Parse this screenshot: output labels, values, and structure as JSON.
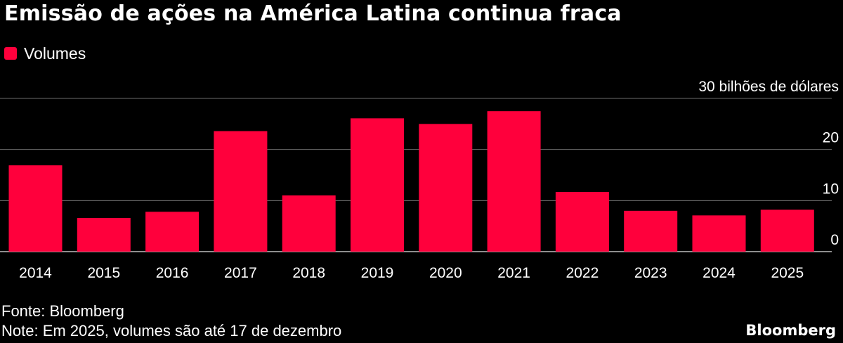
{
  "title": "Emissão de ações na América Latina continua fraca",
  "legend": {
    "label": "Volumes",
    "color": "#ff003c"
  },
  "footer": {
    "source": "Fonte: Bloomberg",
    "note": "Note: Em 2025, volumes são até 17 de dezembro",
    "brand": "Bloomberg"
  },
  "chart_data": {
    "type": "bar",
    "title": "Emissão de ações na América Latina continua fraca",
    "xlabel": "",
    "ylabel": "30 bilhões de dólares",
    "categories": [
      "2014",
      "2015",
      "2016",
      "2017",
      "2018",
      "2019",
      "2020",
      "2021",
      "2022",
      "2023",
      "2024",
      "2025"
    ],
    "series": [
      {
        "name": "Volumes",
        "values": [
          16.9,
          6.6,
          7.8,
          23.6,
          11.0,
          26.1,
          25.0,
          27.5,
          11.7,
          8.0,
          7.1,
          8.2
        ]
      }
    ],
    "ylim": [
      0,
      30
    ],
    "yticks": [
      0,
      10,
      20,
      30
    ],
    "ytick_labels": [
      "0",
      "10",
      "20",
      "30 bilhões de dólares"
    ],
    "grid": true,
    "legend_position": "top-left",
    "bar_color": "#ff003c"
  }
}
